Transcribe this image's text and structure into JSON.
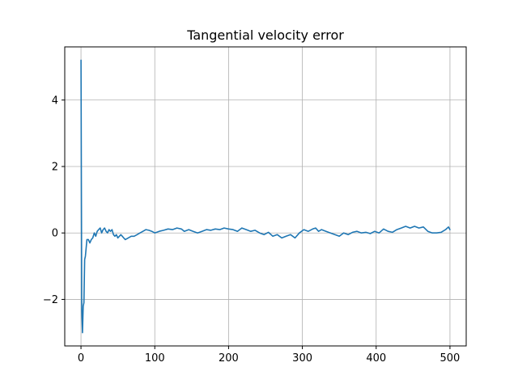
{
  "chart_data": {
    "type": "line",
    "title": "Tangential velocity error",
    "xlabel": "",
    "ylabel": "",
    "xlim": [
      -22,
      522
    ],
    "ylim": [
      -3.4,
      5.6
    ],
    "xticks": [
      0,
      100,
      200,
      300,
      400,
      500
    ],
    "yticks": [
      -2,
      0,
      2,
      4
    ],
    "grid": true,
    "legend": "none",
    "colors": {
      "series": "#1f77b4",
      "grid": "#b0b0b0",
      "axes": "#000000"
    },
    "series": [
      {
        "x": [
          0,
          1,
          2,
          3,
          4,
          5,
          6,
          8,
          10,
          12,
          14,
          16,
          18,
          20,
          22,
          24,
          26,
          28,
          30,
          32,
          34,
          36,
          38,
          40,
          42,
          44,
          46,
          48,
          50,
          52,
          54,
          56,
          58,
          60,
          64,
          68,
          72,
          76,
          80,
          84,
          88,
          92,
          96,
          100,
          106,
          112,
          118,
          124,
          130,
          136,
          140,
          146,
          152,
          158,
          164,
          170,
          176,
          182,
          188,
          194,
          200,
          206,
          212,
          218,
          224,
          230,
          236,
          242,
          248,
          254,
          260,
          266,
          272,
          278,
          284,
          290,
          296,
          302,
          308,
          314,
          318,
          322,
          326,
          332,
          338,
          344,
          350,
          356,
          362,
          368,
          374,
          380,
          386,
          392,
          398,
          404,
          410,
          416,
          422,
          428,
          434,
          440,
          446,
          452,
          458,
          464,
          470,
          476,
          482,
          488,
          494,
          498,
          500
        ],
        "y": [
          5.2,
          -2.3,
          -3.0,
          -2.2,
          -2.1,
          -0.8,
          -0.7,
          -0.2,
          -0.2,
          -0.3,
          -0.2,
          -0.15,
          0.0,
          -0.1,
          0.05,
          0.1,
          0.15,
          0.0,
          0.1,
          0.15,
          0.05,
          0.0,
          0.1,
          0.05,
          0.1,
          -0.05,
          -0.1,
          -0.05,
          -0.15,
          -0.1,
          -0.05,
          -0.1,
          -0.15,
          -0.2,
          -0.15,
          -0.1,
          -0.1,
          -0.05,
          0.0,
          0.05,
          0.1,
          0.08,
          0.05,
          0.0,
          0.05,
          0.08,
          0.12,
          0.1,
          0.15,
          0.12,
          0.05,
          0.1,
          0.05,
          0.0,
          0.05,
          0.1,
          0.08,
          0.12,
          0.1,
          0.15,
          0.12,
          0.1,
          0.05,
          0.15,
          0.1,
          0.05,
          0.08,
          0.0,
          -0.05,
          0.02,
          -0.1,
          -0.05,
          -0.15,
          -0.1,
          -0.05,
          -0.15,
          0.0,
          0.1,
          0.05,
          0.12,
          0.15,
          0.05,
          0.1,
          0.05,
          0.0,
          -0.05,
          -0.1,
          0.0,
          -0.05,
          0.02,
          0.05,
          0.0,
          0.02,
          -0.02,
          0.05,
          0.0,
          0.12,
          0.05,
          0.02,
          0.1,
          0.15,
          0.2,
          0.15,
          0.2,
          0.15,
          0.18,
          0.05,
          0.0,
          0.0,
          0.02,
          0.1,
          0.18,
          0.1
        ]
      }
    ]
  }
}
